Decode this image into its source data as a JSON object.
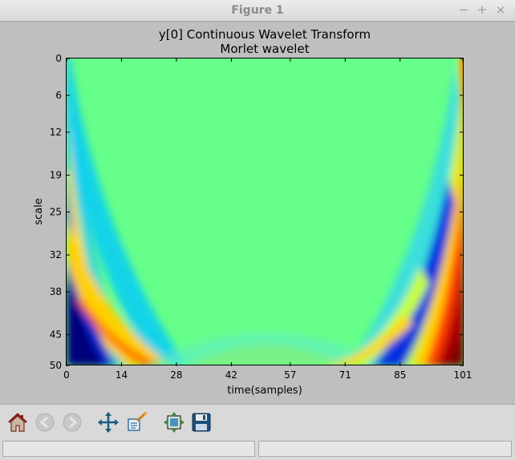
{
  "window": {
    "title": "Figure 1",
    "controls": {
      "minimize": "−",
      "maximize": "+",
      "close": "×"
    }
  },
  "figure": {
    "title_line1": "y[0] Continuous Wavelet Transform",
    "title_line2": "Morlet wavelet",
    "xlabel": "time(samples)",
    "ylabel": "scale",
    "xticks": [
      "0",
      "14",
      "28",
      "42",
      "57",
      "71",
      "85",
      "101"
    ],
    "yticks": [
      "0",
      "6",
      "12",
      "19",
      "25",
      "32",
      "38",
      "45",
      "50"
    ],
    "colormap": "jet"
  },
  "chart_data": {
    "type": "heatmap",
    "title": "y[0] Continuous Wavelet Transform\nMorlet wavelet",
    "xlabel": "time(samples)",
    "ylabel": "scale",
    "x_ticks": [
      0,
      14,
      28,
      42,
      57,
      71,
      85,
      101
    ],
    "y_ticks": [
      0,
      6,
      12,
      19,
      25,
      32,
      38,
      45,
      50
    ],
    "xlim": [
      0,
      101
    ],
    "ylim": [
      0,
      50
    ],
    "y_inverted": true,
    "colormap": "jet",
    "grid": false,
    "legend": false
  },
  "toolbar": {
    "home": "home-icon",
    "back": "back-arrow-icon",
    "forward": "forward-arrow-icon",
    "pan": "pan-icon",
    "zoom": "zoom-icon",
    "subplots": "subplots-icon",
    "save": "save-icon"
  },
  "status": {
    "left": "",
    "right": ""
  }
}
